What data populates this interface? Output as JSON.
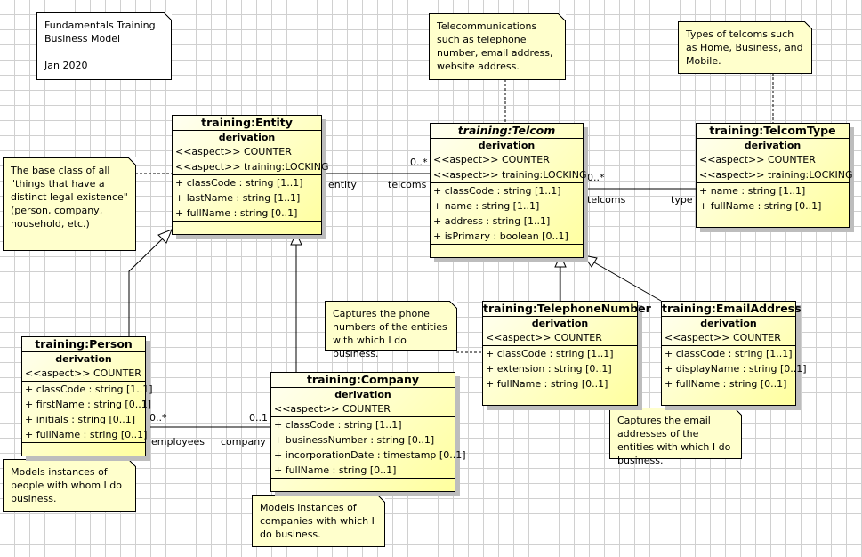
{
  "notes": {
    "model": [
      "Fundamentals Training",
      "Business Model",
      "",
      "Jan 2020"
    ],
    "telecom": "Telecommunications such as telephone number, email address, website address.",
    "telcom_type": "Types of telcoms such as Home, Business, and Mobile.",
    "entity": "The base class of all \"things that have a distinct legal existence\" (person, company, household, etc.)",
    "phone": "Captures the phone numbers of the entities with which I do business.",
    "email": "Captures the email addresses of the entities with which I do business.",
    "person": "Models instances of people with whom I do business.",
    "company": "Models instances of companies with which I do business."
  },
  "classes": {
    "entity": {
      "name": "training:Entity",
      "derivation": "derivation",
      "aspects": [
        "<<aspect>> COUNTER",
        "<<aspect>> training:LOCKING"
      ],
      "attributes": [
        "+ classCode : string [1..1]",
        "+ lastName : string [1..1]",
        "+ fullName : string [0..1]"
      ]
    },
    "telcom": {
      "name": "training:Telcom",
      "derivation": "derivation",
      "aspects": [
        "<<aspect>> COUNTER",
        "<<aspect>> training:LOCKING"
      ],
      "attributes": [
        "+ classCode : string [1..1]",
        "+ name : string [1..1]",
        "+ address : string [1..1]",
        "+ isPrimary : boolean [0..1]"
      ]
    },
    "telcomtype": {
      "name": "training:TelcomType",
      "derivation": "derivation",
      "aspects": [
        "<<aspect>> COUNTER",
        "<<aspect>> training:LOCKING"
      ],
      "attributes": [
        "+ name : string [1..1]",
        "+ fullName : string [0..1]"
      ]
    },
    "person": {
      "name": "training:Person",
      "derivation": "derivation",
      "aspects": [
        "<<aspect>> COUNTER"
      ],
      "attributes": [
        "+ classCode : string [1..1]",
        "+ firstName : string [0..1]",
        "+ initials : string [0..1]",
        "+ fullName : string [0..1]"
      ]
    },
    "company": {
      "name": "training:Company",
      "derivation": "derivation",
      "aspects": [
        "<<aspect>> COUNTER"
      ],
      "attributes": [
        "+ classCode : string [1..1]",
        "+ businessNumber : string [0..1]",
        "+ incorporationDate : timestamp [0..1]",
        "+ fullName : string [0..1]"
      ]
    },
    "phone": {
      "name": "training:TelephoneNumber",
      "derivation": "derivation",
      "aspects": [
        "<<aspect>> COUNTER"
      ],
      "attributes": [
        "+ classCode : string [1..1]",
        "+ extension : string [0..1]",
        "+ fullName : string [0..1]"
      ]
    },
    "emailaddr": {
      "name": "training:EmailAddress",
      "derivation": "derivation",
      "aspects": [
        "<<aspect>> COUNTER"
      ],
      "attributes": [
        "+ classCode : string [1..1]",
        "+ displayName : string [0..1]",
        "+ fullName : string [0..1]"
      ]
    }
  },
  "associations": {
    "entity_telcom": {
      "mult": "0..*",
      "source_role": "entity",
      "target_role": "telcoms"
    },
    "telcom_type": {
      "mult": "0..*",
      "source_role": "telcoms",
      "target_role": "type"
    },
    "person_company": {
      "source_mult": "0..*",
      "target_mult": "0..1",
      "source_role": "employees",
      "target_role": "company"
    }
  }
}
